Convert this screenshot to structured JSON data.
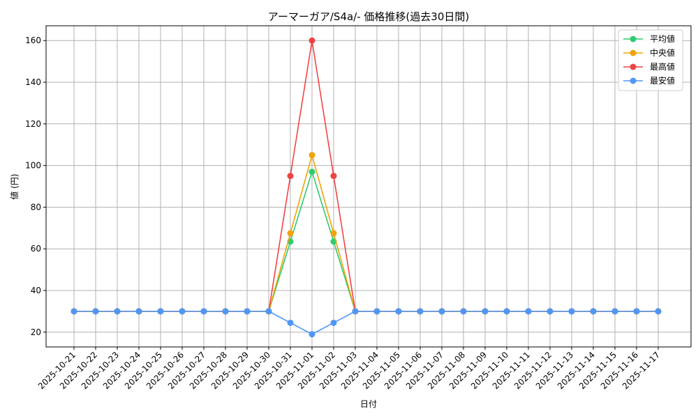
{
  "chart_data": {
    "type": "line",
    "title": "アーマーガア/S4a/- 価格推移(過去30日間)",
    "xlabel": "日付",
    "ylabel": "値 (円)",
    "categories": [
      "2025-10-21",
      "2025-10-22",
      "2025-10-23",
      "2025-10-24",
      "2025-10-25",
      "2025-10-26",
      "2025-10-27",
      "2025-10-28",
      "2025-10-29",
      "2025-10-30",
      "2025-10-31",
      "2025-11-01",
      "2025-11-02",
      "2025-11-03",
      "2025-11-04",
      "2025-11-05",
      "2025-11-06",
      "2025-11-07",
      "2025-11-08",
      "2025-11-09",
      "2025-11-10",
      "2025-11-11",
      "2025-11-12",
      "2025-11-13",
      "2025-11-14",
      "2025-11-15",
      "2025-11-16",
      "2025-11-17"
    ],
    "ylim": [
      12.9,
      167.1
    ],
    "yticks": [
      20,
      40,
      60,
      80,
      100,
      120,
      140,
      160
    ],
    "grid": true,
    "legend_position": "top-right",
    "series": [
      {
        "name": "平均値",
        "color": "#2ecc71",
        "values": [
          30,
          30,
          30,
          30,
          30,
          30,
          30,
          30,
          30,
          30,
          63.5,
          97,
          63.5,
          30,
          30,
          30,
          30,
          30,
          30,
          30,
          30,
          30,
          30,
          30,
          30,
          30,
          30,
          30
        ]
      },
      {
        "name": "中央値",
        "color": "#f0a30a",
        "values": [
          30,
          30,
          30,
          30,
          30,
          30,
          30,
          30,
          30,
          30,
          67.5,
          105,
          67.5,
          30,
          30,
          30,
          30,
          30,
          30,
          30,
          30,
          30,
          30,
          30,
          30,
          30,
          30,
          30
        ]
      },
      {
        "name": "最高値",
        "color": "#ef4444",
        "values": [
          30,
          30,
          30,
          30,
          30,
          30,
          30,
          30,
          30,
          30,
          95,
          160,
          95,
          30,
          30,
          30,
          30,
          30,
          30,
          30,
          30,
          30,
          30,
          30,
          30,
          30,
          30,
          30
        ]
      },
      {
        "name": "最安値",
        "color": "#4f97f5",
        "values": [
          30,
          30,
          30,
          30,
          30,
          30,
          30,
          30,
          30,
          30,
          24.5,
          19,
          24.5,
          30,
          30,
          30,
          30,
          30,
          30,
          30,
          30,
          30,
          30,
          30,
          30,
          30,
          30,
          30
        ]
      }
    ]
  }
}
